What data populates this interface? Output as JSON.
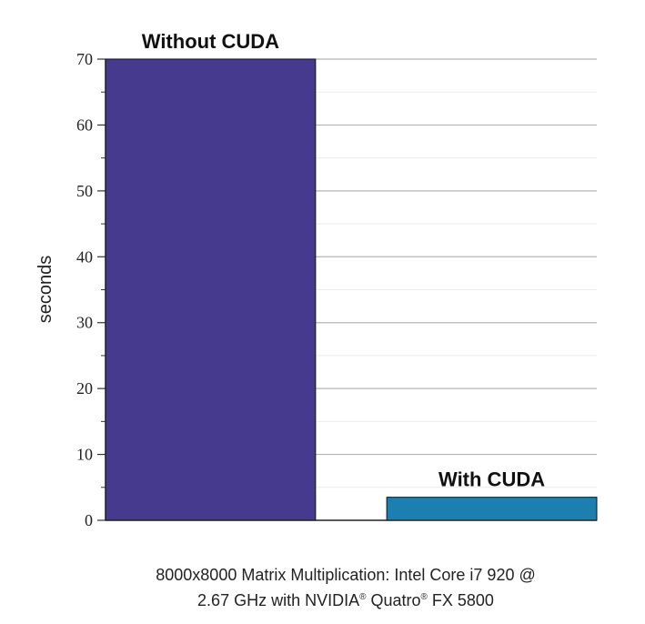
{
  "chart_data": {
    "type": "bar",
    "categories": [
      "Without CUDA",
      "With CUDA"
    ],
    "values": [
      70,
      3.5
    ],
    "bar_colors": [
      "#463a8e",
      "#1c7fb0"
    ],
    "ylabel": "seconds",
    "ylim": [
      0,
      70
    ],
    "yticks": [
      0,
      10,
      20,
      30,
      40,
      50,
      60,
      70
    ],
    "grid": true
  },
  "caption": {
    "line1": "8000x8000 Matrix Multiplication: Intel Core i7 920 @",
    "line2_pre": "2.67 GHz with NVIDIA",
    "registered_1": "®",
    "line2_mid": " Quatro",
    "registered_2": "®",
    "line2_post": " FX 5800"
  }
}
